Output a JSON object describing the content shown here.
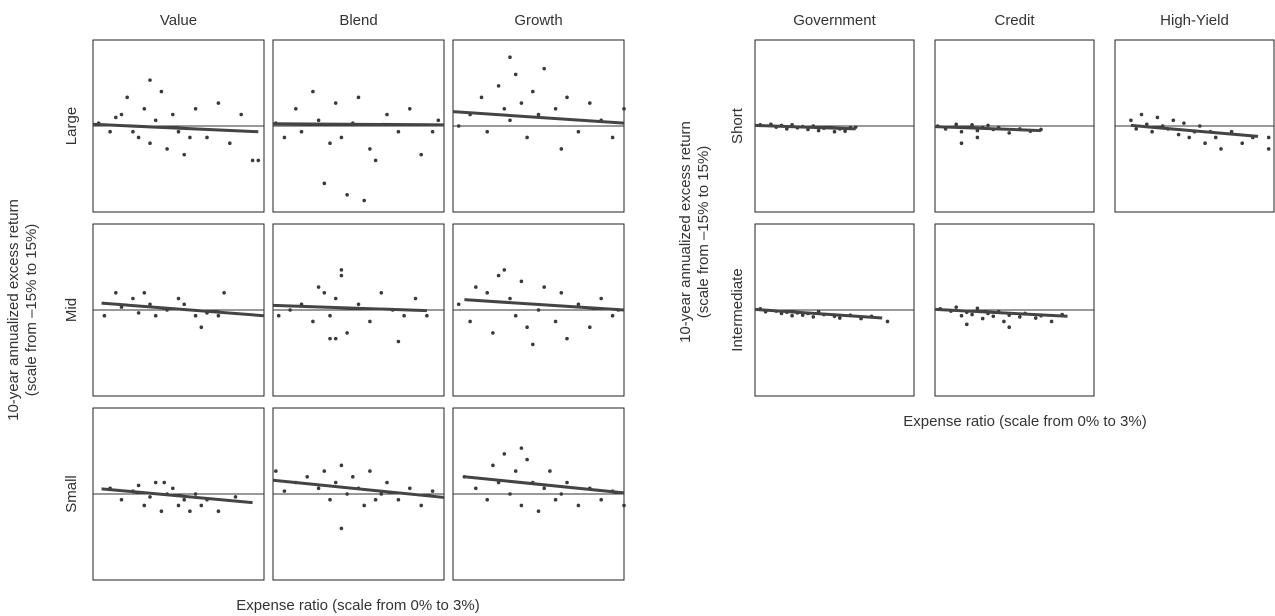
{
  "chart_data": [
    {
      "type": "scatter",
      "columns": [
        "Value",
        "Blend",
        "Growth"
      ],
      "rows": [
        "Large",
        "Mid",
        "Small"
      ],
      "ylabel": [
        "10-year annualized excess return",
        "(scale from –15% to 15%)"
      ],
      "xlabel": "Expense ratio (scale from 0% to 3%)",
      "xlim": [
        0,
        3
      ],
      "ylim": [
        -15,
        15
      ],
      "zero_line": 0,
      "color": "#3a3a3a",
      "panels": [
        [
          {
            "x": [
              0.1,
              0.3,
              0.5,
              0.6,
              0.7,
              0.8,
              0.9,
              1.0,
              1.0,
              1.1,
              1.2,
              1.3,
              1.4,
              1.5,
              1.6,
              1.7,
              1.8,
              2.0,
              2.2,
              2.4,
              2.6,
              2.8,
              2.9,
              0.4
            ],
            "y": [
              0.5,
              -1,
              2,
              5,
              -1,
              -2,
              3,
              -3,
              8,
              1,
              6,
              -4,
              2,
              -1,
              -5,
              -2,
              3,
              -2,
              4,
              -3,
              2,
              -6,
              -6,
              1.5
            ],
            "fit_x": [
              0,
              2.9
            ],
            "fit_y": [
              0.3,
              -1
            ]
          },
          {
            "x": [
              0.05,
              0.2,
              0.4,
              0.5,
              0.7,
              0.8,
              1.0,
              1.1,
              1.2,
              1.4,
              1.5,
              1.7,
              1.8,
              2.0,
              2.2,
              2.4,
              2.6,
              2.8,
              2.9,
              1.3,
              0.9,
              1.6
            ],
            "y": [
              0.5,
              -2,
              3,
              -1,
              6,
              1,
              -3,
              4,
              -2,
              0.5,
              5,
              -4,
              -6,
              2,
              -1,
              3,
              -5,
              -1,
              1,
              -12,
              -10,
              -13
            ],
            "fit_x": [
              0,
              3
            ],
            "fit_y": [
              0.4,
              0.2
            ]
          },
          {
            "x": [
              0.1,
              0.3,
              0.5,
              0.6,
              0.8,
              0.9,
              1.0,
              1.1,
              1.2,
              1.3,
              1.4,
              1.5,
              1.6,
              1.8,
              2.0,
              2.2,
              2.4,
              2.6,
              2.8,
              3.0,
              1.0,
              1.9
            ],
            "y": [
              0,
              2,
              5,
              -1,
              7,
              3,
              1,
              9,
              4,
              -2,
              6,
              2,
              10,
              3,
              5,
              -1,
              4,
              1,
              -2,
              3,
              12,
              -4
            ],
            "fit_x": [
              0,
              3
            ],
            "fit_y": [
              2.5,
              0.5
            ]
          }
        ],
        [
          {
            "x": [
              0.2,
              0.4,
              0.5,
              0.7,
              0.8,
              0.9,
              1.0,
              1.1,
              1.3,
              1.5,
              1.6,
              1.8,
              1.9,
              2.0,
              2.2,
              2.3
            ],
            "y": [
              -1,
              3,
              0.5,
              2,
              -0.5,
              3,
              1,
              -1,
              0,
              2,
              1,
              -1,
              -3,
              -0.5,
              -1,
              3
            ],
            "fit_x": [
              0.15,
              3
            ],
            "fit_y": [
              1.2,
              -1
            ]
          },
          {
            "x": [
              0.1,
              0.3,
              0.5,
              0.7,
              0.8,
              0.9,
              1.0,
              1.1,
              1.2,
              1.3,
              1.5,
              1.7,
              1.9,
              2.1,
              2.3,
              2.5,
              2.7,
              1.0,
              1.1,
              2.2,
              1.2
            ],
            "y": [
              -1,
              0,
              1,
              -2,
              4,
              3,
              -1,
              2,
              6,
              -4,
              1,
              -2,
              3,
              0,
              -1,
              2,
              -1,
              -5,
              -5,
              -5.5,
              7
            ],
            "fit_x": [
              0,
              2.7
            ],
            "fit_y": [
              0.8,
              -0.1
            ]
          },
          {
            "x": [
              0.1,
              0.3,
              0.4,
              0.6,
              0.7,
              0.8,
              1.0,
              1.1,
              1.2,
              1.3,
              1.5,
              1.6,
              1.8,
              1.9,
              2.0,
              2.2,
              2.4,
              2.6,
              2.8,
              2.9,
              0.9,
              1.4
            ],
            "y": [
              1,
              -2,
              4,
              3,
              -4,
              6,
              2,
              -1,
              5,
              -3,
              0,
              4,
              -2,
              3,
              -5,
              1,
              -3,
              2,
              -1,
              0,
              7,
              -6
            ],
            "fit_x": [
              0.2,
              3
            ],
            "fit_y": [
              1.8,
              0
            ]
          }
        ],
        [
          {
            "x": [
              0.3,
              0.5,
              0.7,
              0.8,
              0.9,
              1.0,
              1.1,
              1.2,
              1.3,
              1.4,
              1.5,
              1.6,
              1.7,
              1.8,
              1.9,
              2.0,
              2.2,
              2.5,
              1.25
            ],
            "y": [
              1,
              -1,
              0.5,
              1.5,
              -2,
              -0.5,
              2,
              -3,
              0,
              1,
              -2,
              -1,
              -3,
              0,
              -2,
              -1,
              -3,
              -0.5,
              2
            ],
            "fit_x": [
              0.15,
              2.8
            ],
            "fit_y": [
              0.9,
              -1.5
            ]
          },
          {
            "x": [
              0.05,
              0.2,
              0.4,
              0.6,
              0.8,
              0.9,
              1.0,
              1.1,
              1.2,
              1.3,
              1.4,
              1.5,
              1.6,
              1.7,
              1.8,
              1.9,
              2.0,
              2.2,
              2.4,
              2.6,
              2.8,
              1.2
            ],
            "y": [
              4,
              0.5,
              2,
              3,
              1,
              4,
              -1,
              2,
              5,
              0,
              3,
              1,
              -2,
              4,
              -1,
              0,
              2,
              -1,
              1,
              -2,
              0.5,
              -6
            ],
            "fit_x": [
              0,
              3
            ],
            "fit_y": [
              2.4,
              -0.6
            ]
          },
          {
            "x": [
              0.2,
              0.4,
              0.6,
              0.7,
              0.8,
              0.9,
              1.0,
              1.1,
              1.2,
              1.3,
              1.4,
              1.5,
              1.6,
              1.7,
              1.8,
              1.9,
              2.0,
              2.2,
              2.4,
              2.6,
              2.8,
              3.0,
              1.2
            ],
            "y": [
              3,
              1,
              -1,
              5,
              2,
              7,
              0,
              4,
              -2,
              6,
              2,
              -3,
              1,
              4,
              -1,
              0,
              2,
              -2,
              1,
              -1,
              0.5,
              -2,
              8
            ],
            "fit_x": [
              0.2,
              3
            ],
            "fit_y": [
              3,
              0.2
            ]
          }
        ]
      ]
    },
    {
      "type": "scatter",
      "columns": [
        "Government",
        "Credit",
        "High-Yield"
      ],
      "rows": [
        "Short",
        "Intermediate"
      ],
      "ylabel": [
        "10-year annualized excess return",
        "(scale from –15% to 15%)"
      ],
      "xlabel": "Expense ratio (scale from 0% to 3%)",
      "xlim": [
        0,
        3
      ],
      "ylim": [
        -15,
        15
      ],
      "zero_line": 0,
      "color": "#3a3a3a",
      "panels": [
        [
          {
            "x": [
              0.1,
              0.3,
              0.4,
              0.5,
              0.6,
              0.7,
              0.8,
              0.9,
              1.0,
              1.1,
              1.2,
              1.3,
              1.4,
              1.5,
              1.6,
              1.7,
              1.8,
              1.9
            ],
            "y": [
              0.2,
              0.3,
              -0.2,
              0.1,
              -0.5,
              0.2,
              -0.3,
              -0.1,
              -0.6,
              0,
              -0.8,
              -0.4,
              -0.2,
              -1,
              -0.5,
              -0.9,
              -0.3,
              -0.2
            ],
            "fit_x": [
              0,
              1.9
            ],
            "fit_y": [
              0.1,
              -0.5
            ]
          },
          {
            "x": [
              0.05,
              0.2,
              0.4,
              0.5,
              0.6,
              0.7,
              0.8,
              0.9,
              1.0,
              1.1,
              1.2,
              1.4,
              1.6,
              1.8,
              2.0,
              0.5,
              0.8
            ],
            "y": [
              0,
              -0.5,
              0.3,
              -1,
              -0.2,
              0.2,
              -0.8,
              -0.3,
              0.1,
              -0.6,
              -0.2,
              -1.2,
              -0.5,
              -0.9,
              -0.6,
              -3,
              -2
            ],
            "fit_x": [
              0,
              2
            ],
            "fit_y": [
              -0.1,
              -0.8
            ]
          },
          {
            "x": [
              0.3,
              0.4,
              0.5,
              0.6,
              0.7,
              0.8,
              0.9,
              1.0,
              1.1,
              1.2,
              1.3,
              1.4,
              1.5,
              1.6,
              1.7,
              1.8,
              1.9,
              2.0,
              2.2,
              2.4,
              2.6,
              2.9,
              2.9
            ],
            "y": [
              1,
              -0.5,
              2,
              0.3,
              -1,
              1.5,
              0,
              -0.5,
              1,
              -1.5,
              0.5,
              -2,
              -1,
              0,
              -3,
              -1,
              -2,
              -4,
              -1,
              -3,
              -2,
              -4,
              -2
            ],
            "fit_x": [
              0.3,
              2.7
            ],
            "fit_y": [
              0.1,
              -1.8
            ]
          }
        ],
        [
          {
            "x": [
              0.1,
              0.2,
              0.4,
              0.5,
              0.6,
              0.7,
              0.8,
              0.9,
              1.0,
              1.1,
              1.3,
              1.5,
              1.6,
              1.8,
              2.0,
              2.2,
              2.5,
              1.2
            ],
            "y": [
              0.2,
              -0.3,
              -0.2,
              -0.6,
              -0.4,
              -1,
              -0.5,
              -0.9,
              -0.6,
              -1.2,
              -0.8,
              -1.1,
              -1.4,
              -0.9,
              -1.5,
              -1.1,
              -2,
              -0.3
            ],
            "fit_x": [
              0,
              2.4
            ],
            "fit_y": [
              0.1,
              -1.4
            ]
          },
          {
            "x": [
              0.1,
              0.3,
              0.4,
              0.5,
              0.6,
              0.7,
              0.8,
              0.9,
              1.0,
              1.1,
              1.2,
              1.3,
              1.4,
              1.6,
              1.7,
              1.9,
              2.0,
              2.2,
              2.4,
              0.6,
              1.4
            ],
            "y": [
              0.2,
              -0.2,
              0.5,
              -1,
              -0.4,
              -0.8,
              0.3,
              -1.5,
              -0.6,
              -1.1,
              -0.3,
              -2,
              -0.9,
              -1.2,
              -0.6,
              -1.4,
              -1,
              -2,
              -0.8,
              -2.5,
              -3
            ],
            "fit_x": [
              0,
              2.5
            ],
            "fit_y": [
              0.1,
              -1.1
            ]
          },
          null
        ]
      ]
    }
  ]
}
